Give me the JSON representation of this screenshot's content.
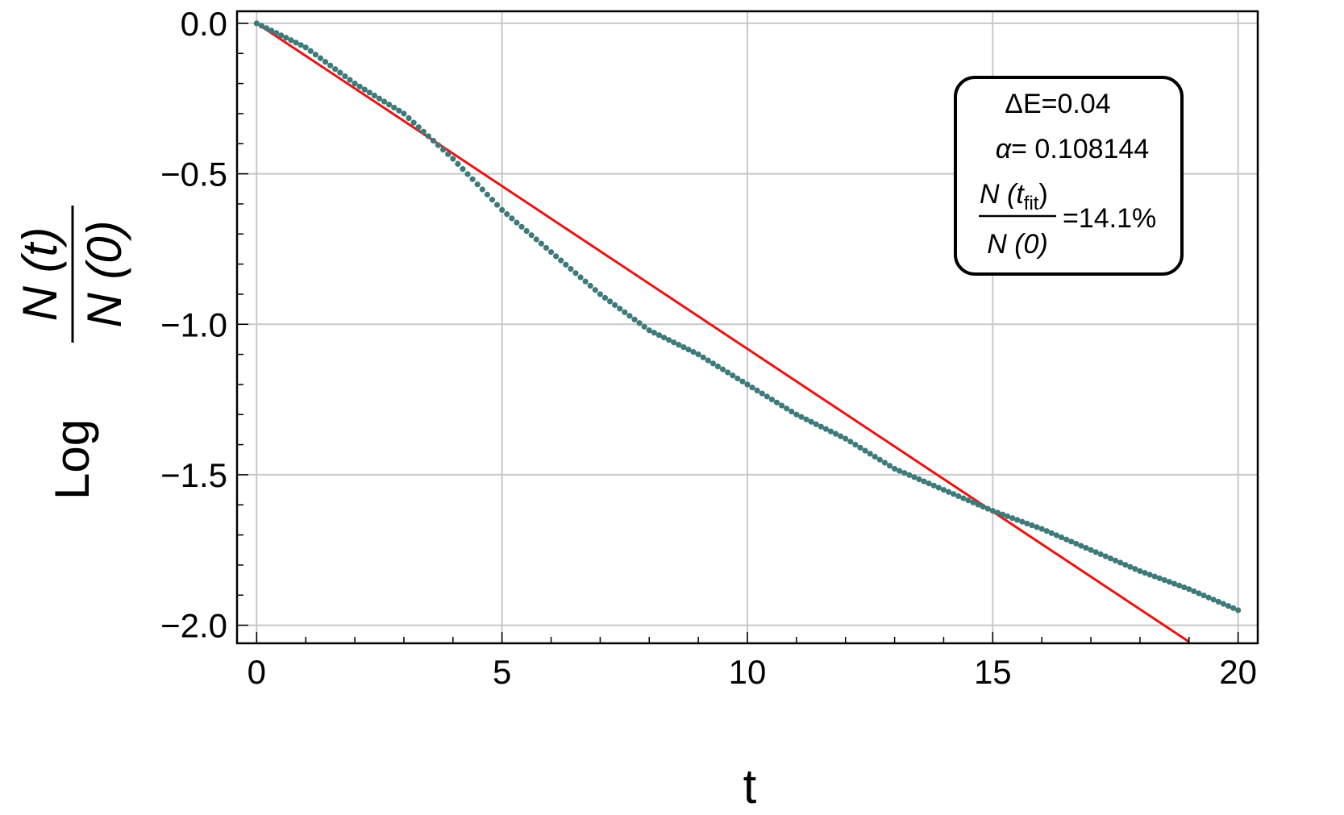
{
  "chart_data": {
    "type": "scatter",
    "xlabel": "t",
    "ylabel": {
      "prefix": "Log",
      "numerator": "N (t)",
      "denominator": "N (0)"
    },
    "xlim": [
      -0.4,
      20.4
    ],
    "ylim": [
      -2.06,
      0.04
    ],
    "x_ticks": [
      0,
      5,
      10,
      15,
      20
    ],
    "x_tick_labels": [
      "0",
      "5",
      "10",
      "15",
      "20"
    ],
    "y_ticks": [
      0.0,
      -0.5,
      -1.0,
      -1.5,
      -2.0
    ],
    "y_tick_labels": [
      "0.0",
      "−0.5",
      "−1.0",
      "−1.5",
      "−2.0"
    ],
    "grid": true,
    "colors": {
      "data": "#3e7a7a",
      "fit": "#ee1111"
    },
    "series": [
      {
        "style": "points",
        "x_start": 0,
        "x_end": 20,
        "x_step": 0.1,
        "curve_anchors": [
          [
            0,
            0
          ],
          [
            1,
            -0.08
          ],
          [
            2,
            -0.2
          ],
          [
            3,
            -0.3
          ],
          [
            4,
            -0.45
          ],
          [
            5,
            -0.62
          ],
          [
            6,
            -0.76
          ],
          [
            7,
            -0.9
          ],
          [
            8,
            -1.02
          ],
          [
            9,
            -1.1
          ],
          [
            10,
            -1.2
          ],
          [
            11,
            -1.3
          ],
          [
            12,
            -1.38
          ],
          [
            13,
            -1.48
          ],
          [
            14,
            -1.55
          ],
          [
            15,
            -1.62
          ],
          [
            16,
            -1.68
          ],
          [
            17,
            -1.75
          ],
          [
            18,
            -1.82
          ],
          [
            19,
            -1.88
          ],
          [
            20,
            -1.95
          ]
        ]
      },
      {
        "style": "line",
        "x": [
          0,
          19.0
        ],
        "y": [
          0,
          -2.055
        ]
      }
    ],
    "legend": {
      "position": "top-right",
      "delta_e": "ΔE=0.04",
      "alpha_symbol": "α",
      "alpha_value": "= 0.108144",
      "frac_num_prefix": "N (t",
      "frac_num_sub": "fit",
      "frac_num_suffix": ")",
      "frac_den": "N (0)",
      "frac_result": "=14.1%"
    }
  }
}
